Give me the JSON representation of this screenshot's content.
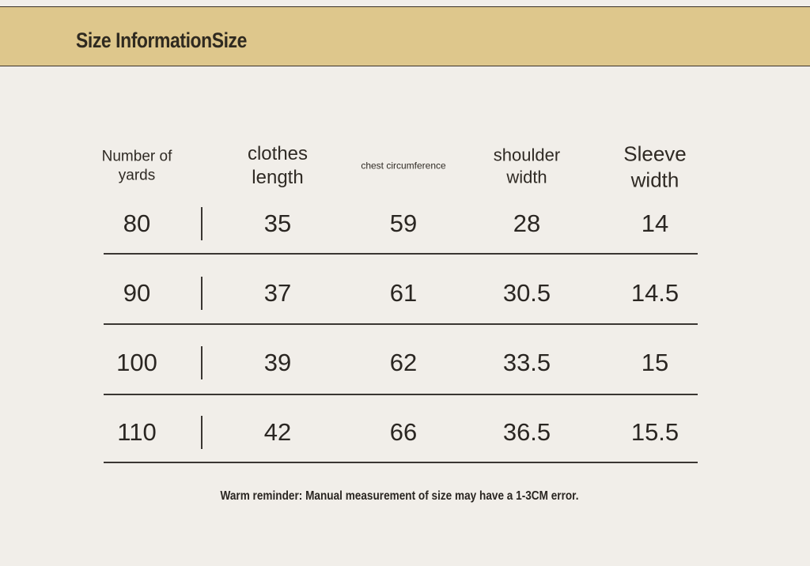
{
  "header": {
    "title": "Size InformationSize"
  },
  "table": {
    "headers": [
      "Number of yards",
      "clothes length",
      "chest circumference",
      "shoulder width",
      "Sleeve width"
    ],
    "rows": [
      [
        "80",
        "35",
        "59",
        "28",
        "14"
      ],
      [
        "90",
        "37",
        "61",
        "30.5",
        "14.5"
      ],
      [
        "100",
        "39",
        "62",
        "33.5",
        "15"
      ],
      [
        "110",
        "42",
        "66",
        "36.5",
        "15.5"
      ]
    ]
  },
  "note": "Warm reminder: Manual measurement of size may have a 1-3CM error."
}
